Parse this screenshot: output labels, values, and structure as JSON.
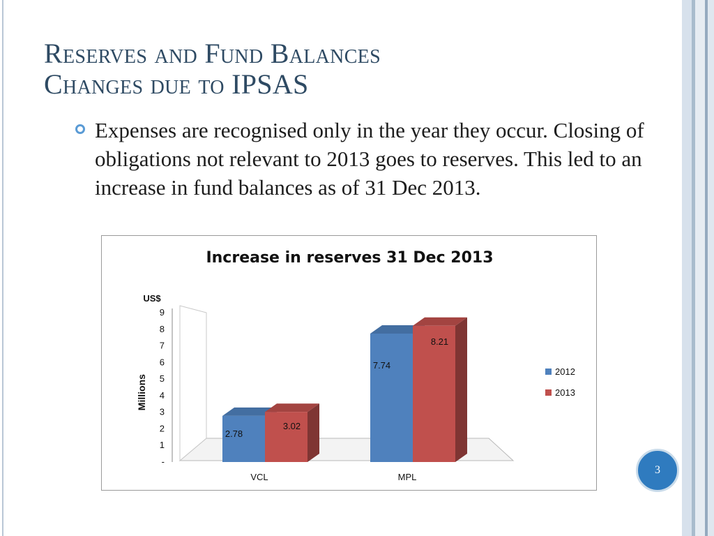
{
  "slide": {
    "title_line1": "Reserves and Fund Balances",
    "title_line2": "Changes due to IPSAS",
    "bullet": "Expenses are recognised only in the year they occur. Closing of obligations not relevant to 2013 goes to reserves. This led to an increase in fund balances as of 31 Dec 2013.",
    "page_number": "3"
  },
  "theme": {
    "title_color": "#2e4a63",
    "bullet_color": "#5a9bd5",
    "badge_color": "#2f7bbf",
    "stripes": [
      "#d7e1ec",
      "#a9bccd",
      "#e6ecf2",
      "#95aabf",
      "#dfe7ef"
    ]
  },
  "chart_data": {
    "type": "bar",
    "style": "3d-clustered-column",
    "title": "Increase in reserves 31 Dec 2013",
    "ylabel": "Millions",
    "unit_label": "US$",
    "categories": [
      "VCL",
      "MPL"
    ],
    "series": [
      {
        "name": "2012",
        "values": [
          2.78,
          7.74
        ],
        "labels": [
          "2.78",
          "7.74"
        ],
        "color": "#4f81bd"
      },
      {
        "name": "2013",
        "values": [
          3.02,
          8.21
        ],
        "labels": [
          "3.02",
          "8.21"
        ],
        "color": "#c0504d"
      }
    ],
    "yticks": [
      "-",
      "1",
      "2",
      "3",
      "4",
      "5",
      "6",
      "7",
      "8",
      "9"
    ],
    "ylim": [
      0,
      9
    ],
    "legend_position": "right",
    "grid": false
  }
}
